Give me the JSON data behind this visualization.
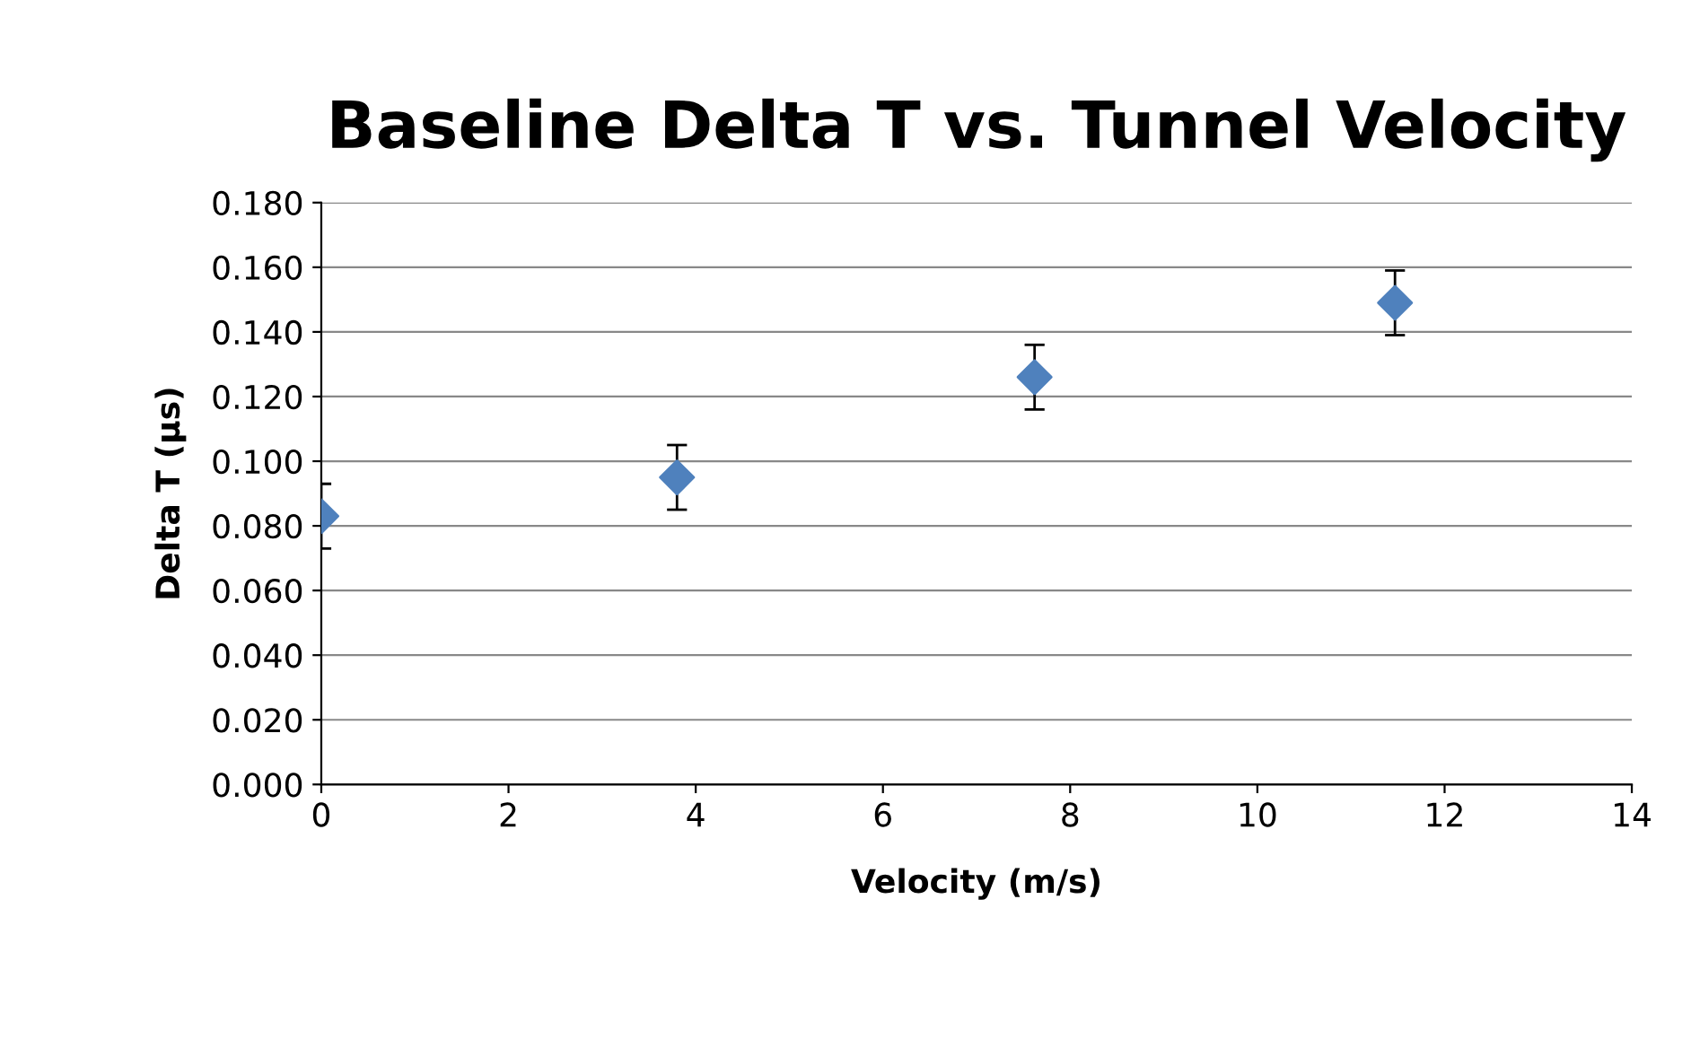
{
  "chart_data": {
    "type": "scatter",
    "title": "Baseline Delta T vs. Tunnel Velocity",
    "xlabel": "Velocity (m/s)",
    "ylabel": "Delta T (µs)",
    "x": [
      0,
      3.8,
      7.62,
      11.47
    ],
    "series": [
      {
        "color": "#4f81bd",
        "values": [
          0.083,
          0.095,
          0.126,
          0.149
        ],
        "errors": [
          0.01,
          0.01,
          0.01,
          0.01
        ]
      }
    ],
    "xlim": [
      0,
      14
    ],
    "xticks": [
      0,
      2,
      4,
      6,
      8,
      10,
      12,
      14
    ],
    "ylim": [
      0,
      0.18
    ],
    "yticks": [
      {
        "value": 0,
        "label": "0.000"
      },
      {
        "value": 0.02,
        "label": "0.020"
      },
      {
        "value": 0.04,
        "label": "0.040"
      },
      {
        "value": 0.06,
        "label": "0.060"
      },
      {
        "value": 0.08,
        "label": "0.080"
      },
      {
        "value": 0.1,
        "label": "0.100"
      },
      {
        "value": 0.12,
        "label": "0.120"
      },
      {
        "value": 0.14,
        "label": "0.140"
      },
      {
        "value": 0.16,
        "label": "0.160"
      },
      {
        "value": 0.18,
        "label": "0.180"
      }
    ],
    "grid": "y",
    "marker": "diamond",
    "legend": false
  }
}
